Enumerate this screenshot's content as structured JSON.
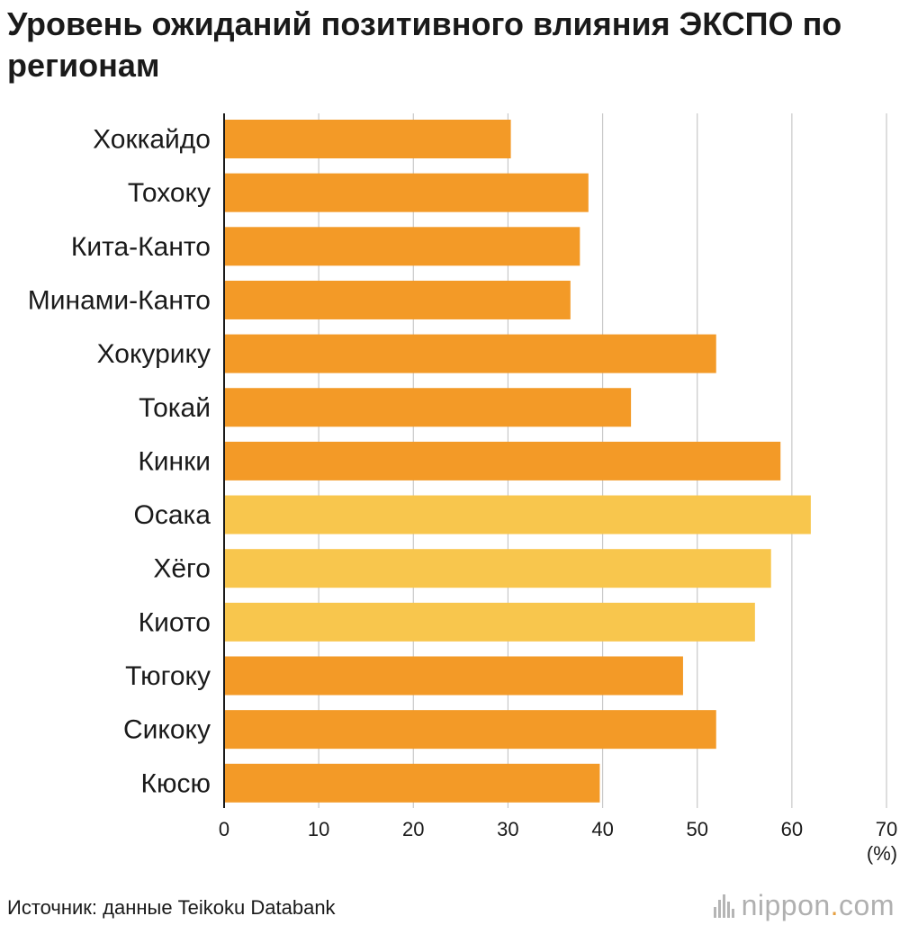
{
  "title": "Уровень ожиданий позитивного влияния ЭКСПО по регионам",
  "source": "Источник: данные Teikoku Databank",
  "logo": {
    "name": "nippon",
    "dot": ".",
    "suffix": "com",
    "icon": "sound-bars-icon"
  },
  "colors": {
    "default": "#f39a27",
    "highlight": "#f8c64d",
    "grid": "#c8c8c8",
    "axis": "#1a1a1a"
  },
  "chart_data": {
    "type": "bar",
    "orientation": "horizontal",
    "categories": [
      "Хоккайдо",
      "Тохоку",
      "Кита-Канто",
      "Минами-Канто",
      "Хокурику",
      "Токай",
      "Кинки",
      "Осака",
      "Хёго",
      "Киото",
      "Тюгоку",
      "Сикоку",
      "Кюсю"
    ],
    "values": [
      30.3,
      38.5,
      37.6,
      36.6,
      52.0,
      43.0,
      58.8,
      62.0,
      57.8,
      56.1,
      48.5,
      52.0,
      39.7
    ],
    "highlighted": [
      "Осака",
      "Хёго",
      "Киото"
    ],
    "xlim": [
      0,
      70
    ],
    "xticks": [
      0,
      10,
      20,
      30,
      40,
      50,
      60,
      70
    ],
    "xunit": "(%)",
    "grid": true
  }
}
